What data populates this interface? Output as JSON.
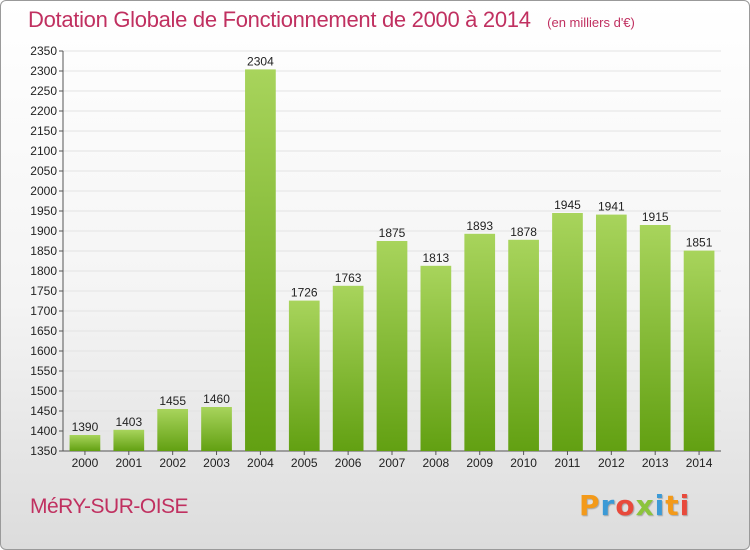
{
  "header": {
    "title": "Dotation Globale de Fonctionnement de 2000 à 2014",
    "unit": "(en milliers d'€)"
  },
  "footer": {
    "place": "MéRY-SUR-OISE",
    "brand": "Proxiti"
  },
  "colors": {
    "bar_top": "#a8d45c",
    "bar_bottom": "#62a012",
    "title": "#c03060",
    "brand_letters": [
      "#f39a1a",
      "#3c9ad6",
      "#e84a3c",
      "#8cc43c",
      "#3c9ad6",
      "#f39a1a",
      "#e84a3c"
    ]
  },
  "chart_data": {
    "type": "bar",
    "title": "Dotation Globale de Fonctionnement de 2000 à 2014",
    "subtitle": "(en milliers d'€)",
    "xlabel": "",
    "ylabel": "",
    "categories": [
      "2000",
      "2001",
      "2002",
      "2003",
      "2004",
      "2005",
      "2006",
      "2007",
      "2008",
      "2009",
      "2010",
      "2011",
      "2012",
      "2013",
      "2014"
    ],
    "values": [
      1390,
      1403,
      1455,
      1460,
      2304,
      1726,
      1763,
      1875,
      1813,
      1893,
      1878,
      1945,
      1941,
      1915,
      1851
    ],
    "ylim": [
      1350,
      2350
    ],
    "ytick_step": 50,
    "grid": true,
    "legend": "none",
    "data_labels": true
  }
}
